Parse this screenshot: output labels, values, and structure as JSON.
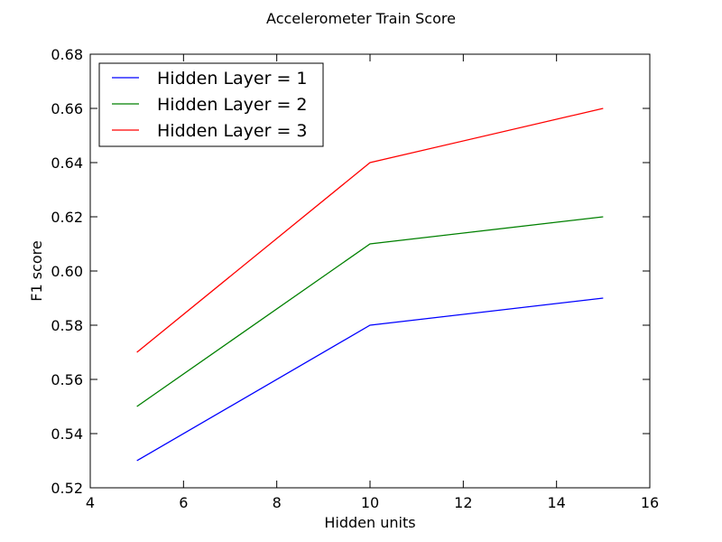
{
  "chart_data": {
    "type": "line",
    "title": "Accelerometer Train Score",
    "xlabel": "Hidden units",
    "ylabel": "F1 score",
    "xlim": [
      4,
      16
    ],
    "ylim": [
      0.52,
      0.68
    ],
    "xticks": [
      4,
      6,
      8,
      10,
      12,
      14,
      16
    ],
    "xtick_labels": [
      "4",
      "6",
      "8",
      "10",
      "12",
      "14",
      "16"
    ],
    "yticks": [
      0.52,
      0.54,
      0.56,
      0.58,
      0.6,
      0.62,
      0.64,
      0.66,
      0.68
    ],
    "ytick_labels": [
      "0.52",
      "0.54",
      "0.56",
      "0.58",
      "0.60",
      "0.62",
      "0.64",
      "0.66",
      "0.68"
    ],
    "grid": false,
    "legend_position": "top-left",
    "x": [
      5,
      10,
      15
    ],
    "series": [
      {
        "name": "Hidden Layer = 1",
        "color": "#0000ff",
        "values": [
          0.53,
          0.58,
          0.59
        ]
      },
      {
        "name": "Hidden Layer = 2",
        "color": "#008000",
        "values": [
          0.55,
          0.61,
          0.62
        ]
      },
      {
        "name": "Hidden Layer = 3",
        "color": "#ff0000",
        "values": [
          0.57,
          0.64,
          0.66
        ]
      }
    ]
  }
}
